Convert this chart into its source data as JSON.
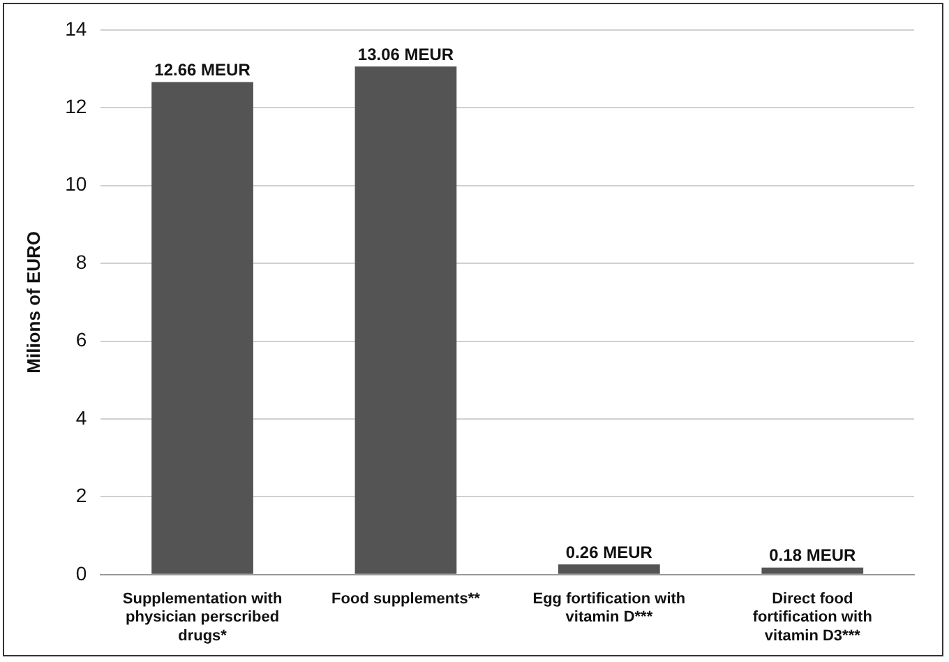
{
  "chart_data": {
    "type": "bar",
    "ylabel": "Milions of EURO",
    "categories": [
      "Supplementation with physician perscribed drugs*",
      "Food supplements**",
      "Egg fortification with vitamin D***",
      "Direct food fortification with vitamin D3***"
    ],
    "values": [
      12.66,
      13.06,
      0.26,
      0.18
    ],
    "value_labels": [
      "12.66 MEUR",
      "13.06 MEUR",
      "0.26 MEUR",
      "0.18 MEUR"
    ],
    "color": "#545454",
    "ylim": [
      0,
      14
    ],
    "yticks": [
      0,
      2,
      4,
      6,
      8,
      10,
      12,
      14
    ],
    "grid": "y",
    "legend": false
  }
}
